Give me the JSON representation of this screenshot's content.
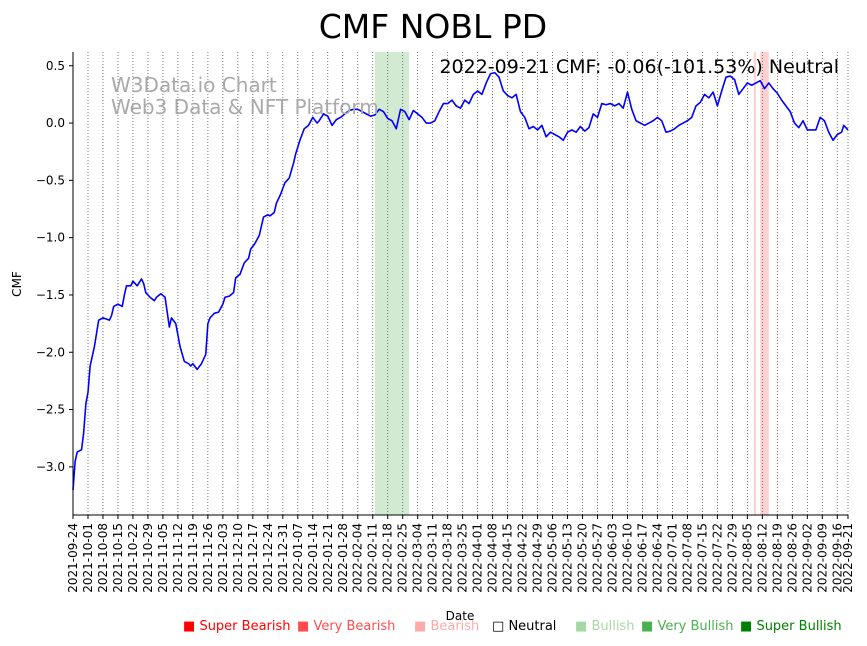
{
  "chart_data": {
    "type": "line",
    "title": "CMF NOBL PD",
    "annotation": "2022-09-21 CMF: -0.06(-101.53%) Neutral",
    "watermark": [
      "W3Data.io Chart",
      "Web3 Data & NFT Platform"
    ],
    "xlabel": "Date",
    "ylabel": "CMF",
    "ylim": [
      -3.42,
      0.62
    ],
    "xlim": [
      "2021-09-24",
      "2022-09-21"
    ],
    "yticks": [
      0.5,
      0.0,
      -0.5,
      -1.0,
      -1.5,
      -2.0,
      -2.5,
      -3.0
    ],
    "ytick_labels": [
      "0.5",
      "0.0",
      "−0.5",
      "−1.0",
      "−1.5",
      "−2.0",
      "−2.5",
      "−3.0"
    ],
    "xticks": [
      "2021-09-24",
      "2021-10-01",
      "2021-10-08",
      "2021-10-15",
      "2021-10-22",
      "2021-10-29",
      "2021-11-05",
      "2021-11-12",
      "2021-11-19",
      "2021-11-26",
      "2021-12-03",
      "2021-12-10",
      "2021-12-17",
      "2021-12-24",
      "2021-12-31",
      "2022-01-07",
      "2022-01-14",
      "2022-01-21",
      "2022-01-28",
      "2022-02-04",
      "2022-02-11",
      "2022-02-18",
      "2022-02-25",
      "2022-03-04",
      "2022-03-11",
      "2022-03-18",
      "2022-03-25",
      "2022-04-01",
      "2022-04-08",
      "2022-04-15",
      "2022-04-22",
      "2022-04-29",
      "2022-05-06",
      "2022-05-13",
      "2022-05-20",
      "2022-05-27",
      "2022-06-03",
      "2022-06-10",
      "2022-06-17",
      "2022-06-24",
      "2022-07-01",
      "2022-07-08",
      "2022-07-15",
      "2022-07-22",
      "2022-07-29",
      "2022-08-05",
      "2022-08-12",
      "2022-08-19",
      "2022-08-26",
      "2022-09-02",
      "2022-09-09",
      "2022-09-16",
      "2022-09-21"
    ],
    "grid": "vertical dotted",
    "series": [
      {
        "color": "#0000ff",
        "points": [
          [
            "2021-09-24",
            -3.2
          ],
          [
            "2021-09-25",
            -2.95
          ],
          [
            "2021-09-26",
            -2.87
          ],
          [
            "2021-09-28",
            -2.85
          ],
          [
            "2021-09-29",
            -2.7
          ],
          [
            "2021-09-30",
            -2.45
          ],
          [
            "2021-10-01",
            -2.35
          ],
          [
            "2021-10-02",
            -2.12
          ],
          [
            "2021-10-04",
            -1.95
          ],
          [
            "2021-10-06",
            -1.72
          ],
          [
            "2021-10-08",
            -1.7
          ],
          [
            "2021-10-11",
            -1.72
          ],
          [
            "2021-10-12",
            -1.68
          ],
          [
            "2021-10-13",
            -1.6
          ],
          [
            "2021-10-15",
            -1.58
          ],
          [
            "2021-10-17",
            -1.6
          ],
          [
            "2021-10-18",
            -1.5
          ],
          [
            "2021-10-19",
            -1.42
          ],
          [
            "2021-10-21",
            -1.42
          ],
          [
            "2021-10-22",
            -1.38
          ],
          [
            "2021-10-24",
            -1.42
          ],
          [
            "2021-10-26",
            -1.36
          ],
          [
            "2021-10-27",
            -1.4
          ],
          [
            "2021-10-28",
            -1.48
          ],
          [
            "2021-10-30",
            -1.52
          ],
          [
            "2021-11-01",
            -1.55
          ],
          [
            "2021-11-02",
            -1.52
          ],
          [
            "2021-11-04",
            -1.49
          ],
          [
            "2021-11-06",
            -1.52
          ],
          [
            "2021-11-08",
            -1.78
          ],
          [
            "2021-11-09",
            -1.7
          ],
          [
            "2021-11-11",
            -1.75
          ],
          [
            "2021-11-13",
            -1.95
          ],
          [
            "2021-11-15",
            -2.08
          ],
          [
            "2021-11-17",
            -2.1
          ],
          [
            "2021-11-18",
            -2.12
          ],
          [
            "2021-11-19",
            -2.1
          ],
          [
            "2021-11-21",
            -2.15
          ],
          [
            "2021-11-23",
            -2.1
          ],
          [
            "2021-11-25",
            -2.02
          ],
          [
            "2021-11-26",
            -1.75
          ],
          [
            "2021-11-27",
            -1.7
          ],
          [
            "2021-11-29",
            -1.66
          ],
          [
            "2021-12-01",
            -1.65
          ],
          [
            "2021-12-03",
            -1.58
          ],
          [
            "2021-12-04",
            -1.52
          ],
          [
            "2021-12-06",
            -1.51
          ],
          [
            "2021-12-08",
            -1.48
          ],
          [
            "2021-12-09",
            -1.35
          ],
          [
            "2021-12-11",
            -1.32
          ],
          [
            "2021-12-13",
            -1.22
          ],
          [
            "2021-12-15",
            -1.18
          ],
          [
            "2021-12-16",
            -1.1
          ],
          [
            "2021-12-18",
            -1.05
          ],
          [
            "2021-12-20",
            -0.98
          ],
          [
            "2021-12-22",
            -0.82
          ],
          [
            "2021-12-24",
            -0.8
          ],
          [
            "2021-12-25",
            -0.81
          ],
          [
            "2021-12-27",
            -0.78
          ],
          [
            "2021-12-28",
            -0.7
          ],
          [
            "2021-12-30",
            -0.62
          ],
          [
            "2022-01-01",
            -0.52
          ],
          [
            "2022-01-03",
            -0.48
          ],
          [
            "2022-01-05",
            -0.35
          ],
          [
            "2022-01-06",
            -0.27
          ],
          [
            "2022-01-08",
            -0.15
          ],
          [
            "2022-01-10",
            -0.05
          ],
          [
            "2022-01-12",
            -0.02
          ],
          [
            "2022-01-14",
            0.05
          ],
          [
            "2022-01-16",
            0.0
          ],
          [
            "2022-01-17",
            0.02
          ],
          [
            "2022-01-19",
            0.08
          ],
          [
            "2022-01-21",
            0.06
          ],
          [
            "2022-01-23",
            -0.02
          ],
          [
            "2022-01-25",
            0.03
          ],
          [
            "2022-01-27",
            0.05
          ],
          [
            "2022-01-29",
            0.08
          ],
          [
            "2022-01-31",
            0.11
          ],
          [
            "2022-02-02",
            0.12
          ],
          [
            "2022-02-04",
            0.12
          ],
          [
            "2022-02-06",
            0.1
          ],
          [
            "2022-02-08",
            0.08
          ],
          [
            "2022-02-10",
            0.06
          ],
          [
            "2022-02-12",
            0.07
          ],
          [
            "2022-02-14",
            0.12
          ],
          [
            "2022-02-16",
            0.1
          ],
          [
            "2022-02-18",
            0.04
          ],
          [
            "2022-02-20",
            0.02
          ],
          [
            "2022-02-22",
            -0.05
          ],
          [
            "2022-02-24",
            0.12
          ],
          [
            "2022-02-26",
            0.1
          ],
          [
            "2022-02-28",
            0.03
          ],
          [
            "2022-03-02",
            0.11
          ],
          [
            "2022-03-04",
            0.08
          ],
          [
            "2022-03-06",
            0.05
          ],
          [
            "2022-03-08",
            0.0
          ],
          [
            "2022-03-10",
            0.0
          ],
          [
            "2022-03-12",
            0.02
          ],
          [
            "2022-03-14",
            0.1
          ],
          [
            "2022-03-16",
            0.17
          ],
          [
            "2022-03-18",
            0.17
          ],
          [
            "2022-03-20",
            0.2
          ],
          [
            "2022-03-22",
            0.15
          ],
          [
            "2022-03-24",
            0.13
          ],
          [
            "2022-03-26",
            0.2
          ],
          [
            "2022-03-28",
            0.17
          ],
          [
            "2022-03-30",
            0.25
          ],
          [
            "2022-04-01",
            0.28
          ],
          [
            "2022-04-03",
            0.25
          ],
          [
            "2022-04-05",
            0.35
          ],
          [
            "2022-04-07",
            0.43
          ],
          [
            "2022-04-09",
            0.44
          ],
          [
            "2022-04-11",
            0.4
          ],
          [
            "2022-04-13",
            0.28
          ],
          [
            "2022-04-15",
            0.24
          ],
          [
            "2022-04-17",
            0.22
          ],
          [
            "2022-04-19",
            0.25
          ],
          [
            "2022-04-21",
            0.1
          ],
          [
            "2022-04-23",
            0.05
          ],
          [
            "2022-04-25",
            -0.05
          ],
          [
            "2022-04-27",
            -0.03
          ],
          [
            "2022-04-29",
            -0.06
          ],
          [
            "2022-05-01",
            -0.02
          ],
          [
            "2022-05-03",
            -0.12
          ],
          [
            "2022-05-05",
            -0.08
          ],
          [
            "2022-05-07",
            -0.1
          ],
          [
            "2022-05-09",
            -0.12
          ],
          [
            "2022-05-11",
            -0.15
          ],
          [
            "2022-05-13",
            -0.08
          ],
          [
            "2022-05-15",
            -0.06
          ],
          [
            "2022-05-17",
            -0.08
          ],
          [
            "2022-05-19",
            -0.03
          ],
          [
            "2022-05-21",
            -0.07
          ],
          [
            "2022-05-23",
            -0.04
          ],
          [
            "2022-05-25",
            0.08
          ],
          [
            "2022-05-27",
            0.05
          ],
          [
            "2022-05-29",
            0.17
          ],
          [
            "2022-05-31",
            0.16
          ],
          [
            "2022-06-02",
            0.17
          ],
          [
            "2022-06-04",
            0.15
          ],
          [
            "2022-06-06",
            0.17
          ],
          [
            "2022-06-08",
            0.13
          ],
          [
            "2022-06-10",
            0.27
          ],
          [
            "2022-06-12",
            0.12
          ],
          [
            "2022-06-14",
            0.02
          ],
          [
            "2022-06-16",
            0.0
          ],
          [
            "2022-06-18",
            -0.02
          ],
          [
            "2022-06-20",
            0.0
          ],
          [
            "2022-06-22",
            0.02
          ],
          [
            "2022-06-24",
            0.05
          ],
          [
            "2022-06-26",
            0.02
          ],
          [
            "2022-06-28",
            -0.08
          ],
          [
            "2022-06-30",
            -0.07
          ],
          [
            "2022-07-02",
            -0.05
          ],
          [
            "2022-07-04",
            -0.02
          ],
          [
            "2022-07-06",
            0.0
          ],
          [
            "2022-07-08",
            0.02
          ],
          [
            "2022-07-10",
            0.05
          ],
          [
            "2022-07-12",
            0.15
          ],
          [
            "2022-07-14",
            0.18
          ],
          [
            "2022-07-16",
            0.25
          ],
          [
            "2022-07-18",
            0.22
          ],
          [
            "2022-07-20",
            0.27
          ],
          [
            "2022-07-22",
            0.15
          ],
          [
            "2022-07-24",
            0.28
          ],
          [
            "2022-07-26",
            0.4
          ],
          [
            "2022-07-28",
            0.41
          ],
          [
            "2022-07-30",
            0.38
          ],
          [
            "2022-08-01",
            0.25
          ],
          [
            "2022-08-03",
            0.3
          ],
          [
            "2022-08-05",
            0.35
          ],
          [
            "2022-08-07",
            0.33
          ],
          [
            "2022-08-09",
            0.35
          ],
          [
            "2022-08-11",
            0.37
          ],
          [
            "2022-08-13",
            0.3
          ],
          [
            "2022-08-15",
            0.35
          ],
          [
            "2022-08-17",
            0.3
          ],
          [
            "2022-08-19",
            0.26
          ],
          [
            "2022-08-21",
            0.2
          ],
          [
            "2022-08-23",
            0.15
          ],
          [
            "2022-08-25",
            0.1
          ],
          [
            "2022-08-27",
            0.0
          ],
          [
            "2022-08-29",
            -0.04
          ],
          [
            "2022-08-31",
            0.02
          ],
          [
            "2022-09-02",
            -0.06
          ],
          [
            "2022-09-04",
            -0.06
          ],
          [
            "2022-09-06",
            -0.06
          ],
          [
            "2022-09-08",
            0.05
          ],
          [
            "2022-09-10",
            0.02
          ],
          [
            "2022-09-12",
            -0.08
          ],
          [
            "2022-09-14",
            -0.15
          ],
          [
            "2022-09-16",
            -0.1
          ],
          [
            "2022-09-18",
            -0.08
          ],
          [
            "2022-09-19",
            -0.02
          ],
          [
            "2022-09-21",
            -0.06
          ]
        ]
      }
    ],
    "bands": [
      {
        "start": "2022-02-12",
        "end": "2022-02-28",
        "color": "#2ca02c",
        "alpha": 0.22
      },
      {
        "start": "2022-08-08",
        "end": "2022-08-09",
        "color": "#ff9999",
        "alpha": 0.45
      },
      {
        "start": "2022-08-11",
        "end": "2022-08-15",
        "color": "#ff9999",
        "alpha": 0.45
      }
    ],
    "legend_placement": "bottom",
    "legend": [
      {
        "marker": "■",
        "label": "Super Bearish",
        "color": "#ff0000"
      },
      {
        "marker": "■",
        "label": "Very Bearish",
        "color": "#ff4d4d"
      },
      {
        "marker": "■",
        "label": "Bearish",
        "color": "#ffaaaa"
      },
      {
        "marker": "□",
        "label": "Neutral",
        "color": "#000000"
      },
      {
        "marker": "■",
        "label": "Bullish",
        "color": "#a6d8a6"
      },
      {
        "marker": "■",
        "label": "Very Bullish",
        "color": "#4caf50"
      },
      {
        "marker": "■",
        "label": "Super Bullish",
        "color": "#008000"
      }
    ]
  }
}
